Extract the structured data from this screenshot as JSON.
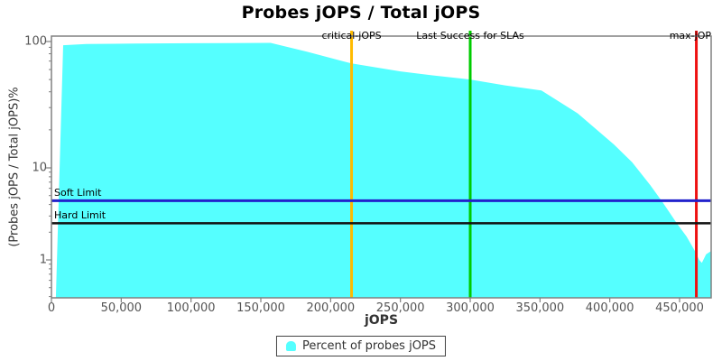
{
  "title": "Probes jOPS / Total jOPS",
  "legend": {
    "label": "Percent of probes jOPS"
  },
  "colors": {
    "area": "#55FFFF",
    "critical_line": "#FFBB00",
    "sla_line": "#00CC00",
    "max_line": "#EE1111",
    "soft_limit_line": "#2222CC",
    "hard_limit_line": "#111111",
    "plot_border": "#808080",
    "tick": "#808080",
    "tick_text": "#555555"
  },
  "chart_data": {
    "type": "area",
    "title": "Probes jOPS / Total jOPS",
    "xlabel": "jOPS",
    "ylabel": "(Probes jOPS / Total jOPS)%",
    "x_range": [
      0,
      472600
    ],
    "y_scale": "log",
    "y_range": [
      0.38,
      110
    ],
    "grid": false,
    "legend_position": "bottom-center",
    "x_ticks": [
      {
        "v": 0,
        "label": "0"
      },
      {
        "v": 50000,
        "label": "50,000"
      },
      {
        "v": 100000,
        "label": "100,000"
      },
      {
        "v": 150000,
        "label": "150,000"
      },
      {
        "v": 200000,
        "label": "200,000"
      },
      {
        "v": 250000,
        "label": "250,000"
      },
      {
        "v": 300000,
        "label": "300,000"
      },
      {
        "v": 350000,
        "label": "350,000"
      },
      {
        "v": 400000,
        "label": "400,000"
      },
      {
        "v": 450000,
        "label": "450,000"
      }
    ],
    "y_ticks": [
      {
        "v": 100,
        "label": "100"
      },
      {
        "v": 10,
        "label": "10"
      },
      {
        "v": 1,
        "label": "1"
      }
    ],
    "y_minor_ticks": [
      0.4,
      0.5,
      0.6,
      0.7,
      0.8,
      0.9,
      2,
      3,
      4,
      5,
      6,
      7,
      8,
      9,
      20,
      30,
      40,
      50,
      60,
      70,
      80,
      90
    ],
    "series": [
      {
        "name": "Percent of probes jOPS",
        "color": "#55FFFF",
        "points": [
          [
            3200,
            0.39
          ],
          [
            8400,
            93.5
          ],
          [
            25000,
            95.5
          ],
          [
            60000,
            96.5
          ],
          [
            100000,
            97
          ],
          [
            157000,
            97.5
          ],
          [
            183000,
            83
          ],
          [
            215000,
            67
          ],
          [
            250000,
            58
          ],
          [
            273000,
            54
          ],
          [
            300000,
            50
          ],
          [
            325000,
            45
          ],
          [
            351000,
            41
          ],
          [
            377000,
            27
          ],
          [
            403000,
            15.3
          ],
          [
            416000,
            11.1
          ],
          [
            429000,
            6.5
          ],
          [
            438000,
            4.2
          ],
          [
            448000,
            2.5
          ],
          [
            455000,
            1.8
          ],
          [
            461000,
            1.25
          ],
          [
            464000,
            1.0
          ],
          [
            466000,
            0.93
          ],
          [
            469000,
            1.15
          ],
          [
            472600,
            1.25
          ]
        ]
      }
    ],
    "vlines": [
      {
        "name": "critical-jops",
        "label": "critical-jOPS",
        "x": 215000,
        "color": "#FFBB00"
      },
      {
        "name": "last-success-slas",
        "label": "Last Success for SLAs",
        "x": 300000,
        "color": "#00CC00"
      },
      {
        "name": "max-jops",
        "label": "max-jOP",
        "x": 462000,
        "color": "#EE1111"
      }
    ],
    "hlines": [
      {
        "name": "soft-limit",
        "label": "Soft Limit",
        "y": 4.4,
        "color": "#2222CC"
      },
      {
        "name": "hard-limit",
        "label": "Hard Limit",
        "y": 2.5,
        "color": "#111111"
      }
    ]
  }
}
